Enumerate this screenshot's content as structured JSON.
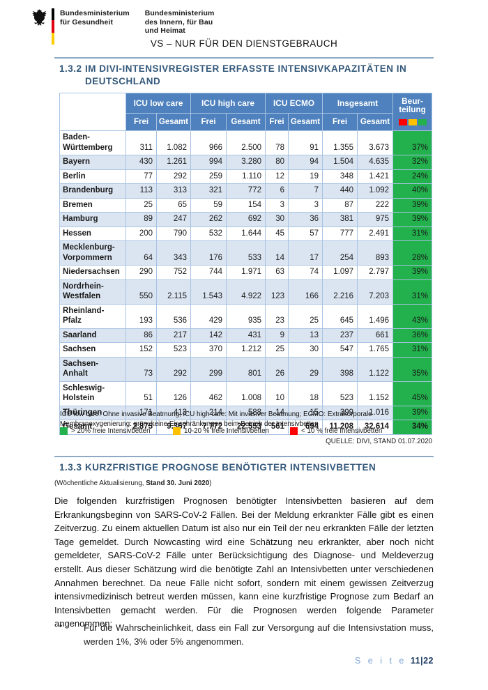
{
  "header": {
    "ministry_health": {
      "line1": "Bundesministerium",
      "line2": "für Gesundheit"
    },
    "ministry_interior": {
      "line1": "Bundesministerium",
      "line2": "des Innern, für Bau",
      "line3": "und Heimat"
    },
    "classification": "VS – NUR FÜR DEN DIENSTGEBRAUCH"
  },
  "section_132": {
    "number": "1.3.2",
    "title": "IM DIVI-INTENSIVREGISTER ERFASSTE INTENSIVKAPAZITÄTEN IN DEUTSCHLAND"
  },
  "table": {
    "groups": [
      "ICU low care",
      "ICU high care",
      "ICU ECMO",
      "Insgesamt"
    ],
    "subheaders": [
      "Frei",
      "Gesamt",
      "Frei",
      "Gesamt",
      "Frei",
      "Gesamt",
      "Frei",
      "Gesamt"
    ],
    "assessment": {
      "line1": "Beur-",
      "line2": "teilung"
    },
    "traffic_colors": [
      "#FF0000",
      "#FFC000",
      "#22B14C"
    ],
    "rows": [
      {
        "name": "Baden-Württemberg",
        "values": [
          "311",
          "1.082",
          "966",
          "2.500",
          "78",
          "91",
          "1.355",
          "3.673"
        ],
        "pct": "37%"
      },
      {
        "name": "Bayern",
        "values": [
          "430",
          "1.261",
          "994",
          "3.280",
          "80",
          "94",
          "1.504",
          "4.635"
        ],
        "pct": "32%"
      },
      {
        "name": "Berlin",
        "values": [
          "77",
          "292",
          "259",
          "1.110",
          "12",
          "19",
          "348",
          "1.421"
        ],
        "pct": "24%"
      },
      {
        "name": "Brandenburg",
        "values": [
          "113",
          "313",
          "321",
          "772",
          "6",
          "7",
          "440",
          "1.092"
        ],
        "pct": "40%"
      },
      {
        "name": "Bremen",
        "values": [
          "25",
          "65",
          "59",
          "154",
          "3",
          "3",
          "87",
          "222"
        ],
        "pct": "39%"
      },
      {
        "name": "Hamburg",
        "values": [
          "89",
          "247",
          "262",
          "692",
          "30",
          "36",
          "381",
          "975"
        ],
        "pct": "39%"
      },
      {
        "name": "Hessen",
        "values": [
          "200",
          "790",
          "532",
          "1.644",
          "45",
          "57",
          "777",
          "2.491"
        ],
        "pct": "31%"
      },
      {
        "name": "Mecklenburg-Vorpommern",
        "values": [
          "64",
          "343",
          "176",
          "533",
          "14",
          "17",
          "254",
          "893"
        ],
        "pct": "28%"
      },
      {
        "name": "Niedersachsen",
        "values": [
          "290",
          "752",
          "744",
          "1.971",
          "63",
          "74",
          "1.097",
          "2.797"
        ],
        "pct": "39%"
      },
      {
        "name": "Nordrhein-Westfalen",
        "values": [
          "550",
          "2.115",
          "1.543",
          "4.922",
          "123",
          "166",
          "2.216",
          "7.203"
        ],
        "pct": "31%"
      },
      {
        "name": "Rheinland-Pfalz",
        "values": [
          "193",
          "536",
          "429",
          "935",
          "23",
          "25",
          "645",
          "1.496"
        ],
        "pct": "43%"
      },
      {
        "name": "Saarland",
        "values": [
          "86",
          "217",
          "142",
          "431",
          "9",
          "13",
          "237",
          "661"
        ],
        "pct": "36%"
      },
      {
        "name": "Sachsen",
        "values": [
          "152",
          "523",
          "370",
          "1.212",
          "25",
          "30",
          "547",
          "1.765"
        ],
        "pct": "31%"
      },
      {
        "name": "Sachsen-Anhalt",
        "values": [
          "73",
          "292",
          "299",
          "801",
          "26",
          "29",
          "398",
          "1.122"
        ],
        "pct": "35%"
      },
      {
        "name": "Schleswig-Holstein",
        "values": [
          "51",
          "126",
          "462",
          "1.008",
          "10",
          "18",
          "523",
          "1.152"
        ],
        "pct": "45%"
      },
      {
        "name": "Thüringen",
        "values": [
          "171",
          "413",
          "214",
          "588",
          "14",
          "15",
          "399",
          "1.016"
        ],
        "pct": "39%"
      }
    ],
    "total": {
      "name": "Gesamt",
      "values": [
        "2.875",
        "9.367",
        "7.772",
        "22.553",
        "561",
        "694",
        "11.208",
        "32.614"
      ],
      "pct": "34%"
    }
  },
  "footnote": "ICU low care: Ohne invasive Beatmung; ICU high care: Mit invasiver Beatmung; ECMO: Extrakorporale Membranoxygenierung: grün: keine Einschränkungen beim Betrieb der Intensivbetten",
  "legend": [
    {
      "color": "#22B14C",
      "label": "> 20% freie Intensivbetten"
    },
    {
      "color": "#FFC000",
      "label": "10-20 % freie Intensivbetten"
    },
    {
      "color": "#FF0000",
      "label": "< 10 % freie Intensivbetten"
    }
  ],
  "source": "QUELLE: DIVI, STAND 01.07.2020",
  "section_133": {
    "number": "1.3.3",
    "title": "KURZFRISTIGE PROGNOSE BENÖTIGTER INTENSIVBETTEN",
    "note_prefix": "(Wöchentliche Aktualisierung, ",
    "note_bold": "Stand 30. Juni 2020",
    "note_suffix": ")"
  },
  "body": {
    "paragraph": "Die folgenden kurzfristigen Prognosen benötigter Intensivbetten basieren auf dem Erkrankungsbeginn von SARS-CoV-2 Fällen.  Bei der Meldung erkrankter Fälle gibt es einen Zeitverzug. Zu einem aktuellen Datum ist also nur ein Teil der neu erkrankten Fälle der letzten Tage gemeldet. Durch Nowcasting wird eine Schätzung neu erkrankter, aber noch nicht gemeldeter, SARS-CoV-2 Fälle unter Berücksichtigung des Diagnose- und Meldeverzug erstellt. Aus dieser Schätzung wird die benötigte Zahl an Intensivbetten unter verschiedenen Annahmen berechnet. Da neue Fälle nicht sofort, sondern mit einem gewissen Zeitverzug intensivmedizinisch betreut werden müssen, kann eine kurzfristige Prognose zum Bedarf an Intensivbetten gemacht werden. Für die Prognosen werden folgende Parameter angenommen:",
    "bullet_marker": "•",
    "bullet": "Für die Wahrscheinlichkeit, dass ein Fall zur Versorgung auf die Intensivstation muss, werden 1%, 3% oder 5% angenommen."
  },
  "footer": {
    "label": "S e i t e",
    "page": "11|22"
  },
  "colors": {
    "table_header_blue": "#4E81BD",
    "row_band_blue": "#DBE5F1",
    "table_border": "#A8C3E2",
    "status_green": "#22B14C",
    "status_yellow": "#FFC000",
    "status_red": "#FF0000",
    "heading_blue": "#33587A",
    "rule_blue": "#8FA9C4",
    "footer_label_blue": "#7EA4D4",
    "footer_page_navy": "#17365D",
    "flag_black": "#000000",
    "flag_red": "#E1000F",
    "flag_gold": "#FFCC00"
  }
}
